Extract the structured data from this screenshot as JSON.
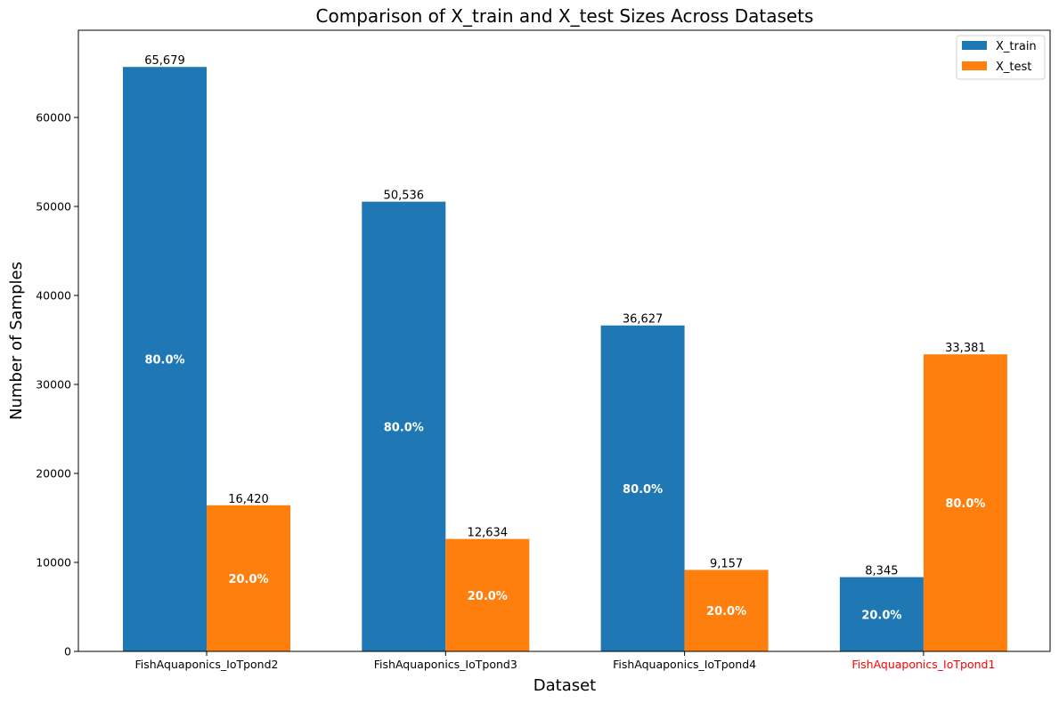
{
  "chart_data": {
    "type": "bar",
    "title": "Comparison of X_train and X_test Sizes Across Datasets",
    "xlabel": "Dataset",
    "ylabel": "Number of Samples",
    "categories": [
      "FishAquaponics_IoTpond2",
      "FishAquaponics_IoTpond3",
      "FishAquaponics_IoTpond4",
      "FishAquaponics_IoTpond1"
    ],
    "category_label_colors": [
      "#000000",
      "#000000",
      "#000000",
      "#ff0000"
    ],
    "series": [
      {
        "name": "X_train",
        "color": "#1f77b4",
        "values": [
          65679,
          50536,
          36627,
          8345
        ],
        "value_labels": [
          "65,679",
          "50,536",
          "36,627",
          "8,345"
        ],
        "percent_labels": [
          "80.0%",
          "80.0%",
          "80.0%",
          "20.0%"
        ]
      },
      {
        "name": "X_test",
        "color": "#ff7f0e",
        "values": [
          16420,
          12634,
          9157,
          33381
        ],
        "value_labels": [
          "16,420",
          "12,634",
          "9,157",
          "33,381"
        ],
        "percent_labels": [
          "20.0%",
          "20.0%",
          "20.0%",
          "80.0%"
        ]
      }
    ],
    "ylim": [
      0,
      69800
    ],
    "yticks": [
      0,
      10000,
      20000,
      30000,
      40000,
      50000,
      60000
    ],
    "ytick_labels": [
      "0",
      "10000",
      "20000",
      "30000",
      "40000",
      "50000",
      "60000"
    ],
    "legend_position": "top-right",
    "grid": false
  }
}
